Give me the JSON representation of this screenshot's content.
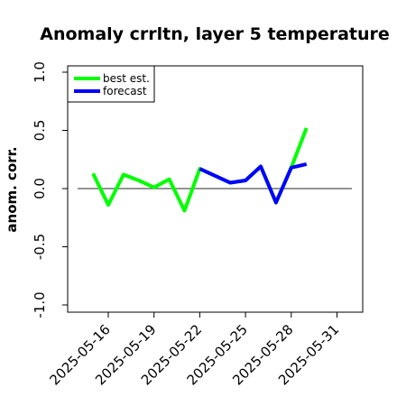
{
  "chart_data": {
    "type": "line",
    "title": "Anomaly crrltn, layer 5 temperature",
    "xlabel": "",
    "ylabel": "anom. corr.",
    "ylim": [
      -1.0,
      1.0
    ],
    "y_ticks": [
      "-1.0",
      "-0.5",
      "0.0",
      "0.5",
      "1.0"
    ],
    "y_tick_values": [
      -1.0,
      -0.5,
      0.0,
      0.5,
      1.0
    ],
    "x_ticks": [
      "2025-05-16",
      "2025-05-19",
      "2025-05-22",
      "2025-05-25",
      "2025-05-28",
      "2025-05-31"
    ],
    "highlight_tick": "2025-05-22",
    "highlight_color": "#228B22",
    "reference_line": 0.0,
    "grid": false,
    "legend_position": "top-left",
    "series": [
      {
        "name": "best est.",
        "color": "#00FF00",
        "x": [
          "2025-05-15",
          "2025-05-16",
          "2025-05-17",
          "2025-05-18",
          "2025-05-19",
          "2025-05-20",
          "2025-05-21",
          "2025-05-22",
          "2025-05-23",
          "2025-05-24",
          "2025-05-25",
          "2025-05-26",
          "2025-05-27",
          "2025-05-28",
          "2025-05-29"
        ],
        "values": [
          0.13,
          -0.14,
          0.12,
          0.07,
          0.01,
          0.08,
          -0.19,
          0.17,
          0.11,
          0.05,
          0.07,
          0.19,
          -0.12,
          0.18,
          0.52
        ]
      },
      {
        "name": "forecast",
        "color": "#0000FF",
        "x": [
          "2025-05-22",
          "2025-05-23",
          "2025-05-24",
          "2025-05-25",
          "2025-05-26",
          "2025-05-27",
          "2025-05-28",
          "2025-05-29"
        ],
        "values": [
          0.17,
          0.11,
          0.05,
          0.07,
          0.19,
          -0.12,
          0.18,
          0.21
        ]
      }
    ]
  }
}
